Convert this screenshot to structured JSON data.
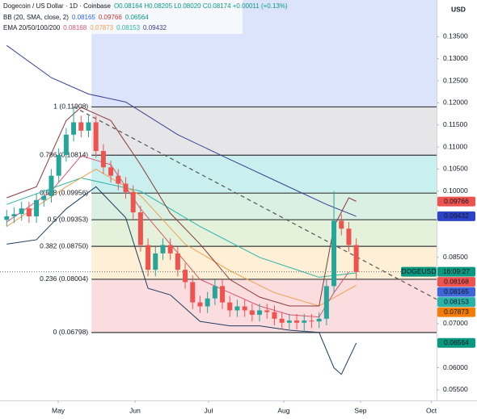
{
  "chart_data": {
    "type": "candlestick",
    "header": {
      "title": "Dogecoin / US Dollar · 1D · Coinbase",
      "ohlc": "O0.08164 H0.08205 L0.08020 C0.08174 +0.00011 (+0.13%)",
      "bb_label": "BB (20, SMA, close, 2)",
      "bb_values": [
        "0.08165",
        "0.09766",
        "0.06564"
      ],
      "ema_label": "EMA 20/50/100/200",
      "ema_values": [
        "0.08168",
        "0.07873",
        "0.08153",
        "0.09432"
      ]
    },
    "currency": "USD",
    "xlim": [
      -0.9,
      57.8
    ],
    "ylim": [
      0.0526,
      0.1433
    ],
    "xticks": [
      {
        "value": 6.93,
        "label": "May"
      },
      {
        "value": 17.25,
        "label": "Jun"
      },
      {
        "value": 27.14,
        "label": "Jul"
      },
      {
        "value": 37.25,
        "label": "Aug"
      },
      {
        "value": 47.58,
        "label": "Sep"
      },
      {
        "value": 57.1,
        "label": "Oct"
      }
    ],
    "yticks": [
      {
        "value": 0.135,
        "label": "0.13500"
      },
      {
        "value": 0.13,
        "label": "0.13000"
      },
      {
        "value": 0.125,
        "label": "0.12500"
      },
      {
        "value": 0.12,
        "label": "0.12000"
      },
      {
        "value": 0.115,
        "label": "0.11500"
      },
      {
        "value": 0.11,
        "label": "0.11000"
      },
      {
        "value": 0.105,
        "label": "0.10500"
      },
      {
        "value": 0.1,
        "label": "0.10000"
      },
      {
        "value": 0.085,
        "label": "0.08500"
      },
      {
        "value": 0.07,
        "label": "0.07000"
      },
      {
        "value": 0.06,
        "label": "0.06000"
      },
      {
        "value": 0.055,
        "label": "0.05500"
      }
    ],
    "up_color": "#26a69a",
    "down_color": "#ef5350",
    "open": [
      0.0935,
      0.0943,
      0.0948,
      0.0961,
      0.0943,
      0.098,
      0.0989,
      0.1035,
      0.1082,
      0.1128,
      0.1156,
      0.1137,
      0.1156,
      0.1091,
      0.1054,
      0.1035,
      0.1017,
      0.0998,
      0.0952,
      0.0878,
      0.0822,
      0.0859,
      0.0878,
      0.0859,
      0.0822,
      0.0794,
      0.0748,
      0.0739,
      0.0757,
      0.0785,
      0.0748,
      0.073,
      0.0739,
      0.073,
      0.072,
      0.073,
      0.0726,
      0.0711,
      0.0702,
      0.0707,
      0.0702,
      0.0707,
      0.0705,
      0.0711,
      0.0785,
      0.0933,
      0.0915,
      0.0878
    ],
    "high": [
      0.0958,
      0.0963,
      0.0976,
      0.0976,
      0.0995,
      0.1004,
      0.105,
      0.1097,
      0.1143,
      0.1191,
      0.1171,
      0.1171,
      0.1171,
      0.1106,
      0.1069,
      0.105,
      0.1032,
      0.1013,
      0.0967,
      0.0893,
      0.0874,
      0.0893,
      0.0893,
      0.0874,
      0.0837,
      0.0809,
      0.0763,
      0.0772,
      0.08,
      0.08,
      0.0763,
      0.0754,
      0.0754,
      0.0745,
      0.0745,
      0.0745,
      0.0741,
      0.0726,
      0.0722,
      0.0722,
      0.0722,
      0.0722,
      0.0726,
      0.08,
      0.1,
      0.0948,
      0.093,
      0.0893
    ],
    "low": [
      0.092,
      0.0928,
      0.0933,
      0.0928,
      0.0928,
      0.0965,
      0.0974,
      0.102,
      0.1067,
      0.1113,
      0.1122,
      0.1122,
      0.1076,
      0.1039,
      0.102,
      0.1002,
      0.0983,
      0.0937,
      0.0863,
      0.0807,
      0.0807,
      0.0844,
      0.0844,
      0.0807,
      0.0779,
      0.0733,
      0.0724,
      0.0724,
      0.0742,
      0.0733,
      0.0715,
      0.0715,
      0.0715,
      0.0705,
      0.0705,
      0.0711,
      0.0696,
      0.0687,
      0.0687,
      0.0687,
      0.068,
      0.069,
      0.069,
      0.0696,
      0.077,
      0.09,
      0.0863,
      0.0802
    ],
    "close": [
      0.0943,
      0.0948,
      0.0961,
      0.0943,
      0.098,
      0.0989,
      0.1035,
      0.1082,
      0.1128,
      0.1156,
      0.1137,
      0.1156,
      0.1091,
      0.1054,
      0.1035,
      0.1017,
      0.0998,
      0.0952,
      0.0878,
      0.0822,
      0.0859,
      0.0878,
      0.0859,
      0.0822,
      0.0794,
      0.0748,
      0.0739,
      0.0757,
      0.0785,
      0.0748,
      0.073,
      0.0739,
      0.073,
      0.072,
      0.073,
      0.0726,
      0.0711,
      0.0702,
      0.0707,
      0.0702,
      0.0707,
      0.0705,
      0.0711,
      0.0785,
      0.0933,
      0.0915,
      0.0878,
      0.0817
    ],
    "indicators": [
      {
        "color": "#3a3f94",
        "x": [
          0,
          6,
          11,
          16,
          23,
          30,
          37,
          43,
          47
        ],
        "values": [
          0.133,
          0.1257,
          0.122,
          0.1202,
          0.1128,
          0.1072,
          0.1017,
          0.097,
          0.0943
        ]
      },
      {
        "color": "#2bb3a8",
        "x": [
          0,
          10,
          18,
          26,
          34,
          42,
          47
        ],
        "values": [
          0.097,
          0.103,
          0.1,
          0.092,
          0.085,
          0.0805,
          0.0815
        ]
      },
      {
        "color": "#f0a04b",
        "x": [
          0,
          8,
          12,
          18,
          24,
          30,
          36,
          42,
          47
        ],
        "values": [
          0.092,
          0.101,
          0.105,
          0.099,
          0.088,
          0.082,
          0.077,
          0.074,
          0.0787
        ]
      },
      {
        "color": "#d9546e",
        "x": [
          0,
          6,
          10,
          14,
          18,
          22,
          26,
          30,
          34,
          38,
          42,
          44,
          46
        ],
        "values": [
          0.093,
          0.1,
          0.108,
          0.106,
          0.096,
          0.088,
          0.08,
          0.077,
          0.074,
          0.072,
          0.0715,
          0.077,
          0.0817
        ]
      },
      {
        "color": "#8b3a3a",
        "x": [
          0,
          4,
          8,
          10,
          14,
          18,
          22,
          26,
          30,
          34,
          38,
          42,
          44,
          46,
          47
        ],
        "values": [
          0.0985,
          0.101,
          0.116,
          0.119,
          0.116,
          0.106,
          0.095,
          0.088,
          0.08,
          0.076,
          0.074,
          0.074,
          0.092,
          0.0985,
          0.0977
        ]
      },
      {
        "color": "#1e3a5f",
        "x": [
          0,
          4,
          8,
          12,
          16,
          19,
          22,
          26,
          30,
          34,
          38,
          42,
          44,
          45,
          47
        ],
        "values": [
          0.088,
          0.089,
          0.096,
          0.101,
          0.094,
          0.078,
          0.0765,
          0.0705,
          0.0695,
          0.0695,
          0.0685,
          0.068,
          0.06,
          0.0585,
          0.0656
        ]
      }
    ],
    "trend_line": {
      "color": "#555555",
      "x": [
        9,
        57.8
      ],
      "values": [
        0.1191,
        0.0755
      ]
    },
    "fib": {
      "start": 11.4,
      "above_color": "#dce4fb",
      "line_color": "#3a3a3a",
      "levels": [
        {
          "label": "1 (0.11908)",
          "price": 0.11908,
          "text_color": "#6b6f7a",
          "color": "#e6e6e8"
        },
        {
          "label": "0.786 (0.10814)",
          "price": 0.10814,
          "text_color": "#1a9a8a",
          "color": "#c9f0ee"
        },
        {
          "label": "0.618 (0.09956)",
          "price": 0.09956,
          "text_color": "#4a5a4a",
          "color": "#d9f0e3"
        },
        {
          "label": "0.5 (0.09353)",
          "price": 0.09353,
          "text_color": "#4caf50",
          "color": "#e4f2dc"
        },
        {
          "label": "0.382 (0.08750)",
          "price": 0.0875,
          "text_color": "#e08a1e",
          "color": "#fdf0d6"
        },
        {
          "label": "0.236 (0.08004)",
          "price": 0.08004,
          "text_color": "#e0414f",
          "color": "#fbdde0"
        },
        {
          "label": "0 (0.06798)",
          "price": 0.06798,
          "text_color": "#6b6f7a"
        }
      ]
    },
    "last_price": {
      "symbol": "DOGEUSD",
      "time": "16:09:27",
      "value": 0.08174,
      "color": "#089981"
    },
    "price_tags": [
      {
        "label": "0.09766",
        "value": 0.09766,
        "color": "#ef5350"
      },
      {
        "label": "0.09432",
        "value": 0.09432,
        "color": "#2d44c8"
      },
      {
        "label": "0.08168",
        "value": 0.08168,
        "color": "#ef5350"
      },
      {
        "label": "0.08165",
        "value": 0.08165,
        "color": "#3f66d9"
      },
      {
        "label": "0.08153",
        "value": 0.08153,
        "color": "#2bb3a8"
      },
      {
        "label": "0.07873",
        "value": 0.07873,
        "color": "#f57c00"
      },
      {
        "label": "0.06564",
        "value": 0.06564,
        "color": "#089981"
      }
    ]
  }
}
